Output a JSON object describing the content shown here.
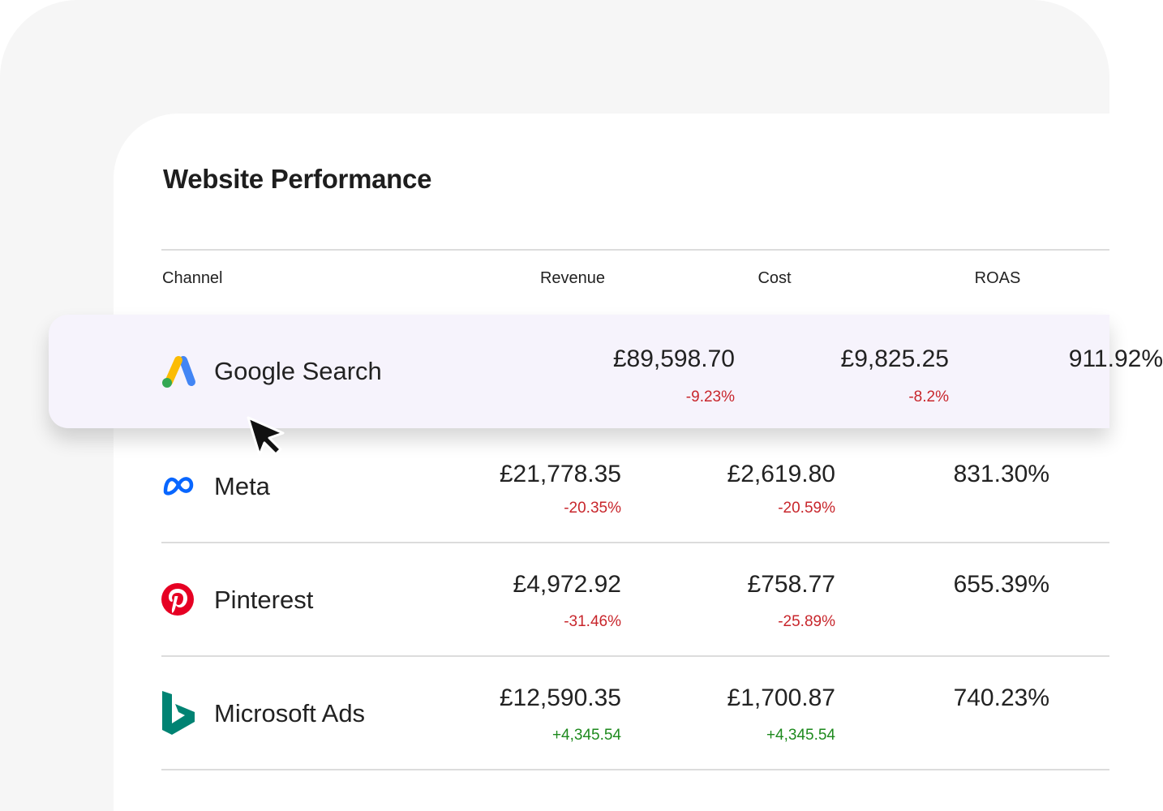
{
  "title": "Website Performance",
  "columns": {
    "channel": "Channel",
    "revenue": "Revenue",
    "cost": "Cost",
    "roas": "ROAS"
  },
  "rows": [
    {
      "channel": "Google Search",
      "icon": "google-ads-icon",
      "revenue": "£89,598.70",
      "revenue_change": "-9.23%",
      "cost": "£9,825.25",
      "cost_change": "-8.2%",
      "roas": "911.92%",
      "highlighted": true
    },
    {
      "channel": "Meta",
      "icon": "meta-icon",
      "revenue": "£21,778.35",
      "revenue_change": "-20.35%",
      "cost": "£2,619.80",
      "cost_change": "-20.59%",
      "roas": "831.30%"
    },
    {
      "channel": "Pinterest",
      "icon": "pinterest-icon",
      "revenue": "£4,972.92",
      "revenue_change": "-31.46%",
      "cost": "£758.77",
      "cost_change": "-25.89%",
      "roas": "655.39%"
    },
    {
      "channel": "Microsoft Ads",
      "icon": "bing-icon",
      "revenue": "£12,590.35",
      "revenue_change": "+4,345.54",
      "cost": "£1,700.87",
      "cost_change": "+4,345.54",
      "roas": "740.23%"
    }
  ],
  "colors": {
    "negative": "#c8262c",
    "positive": "#1e8a1e",
    "highlight_row": "#f6f3fc"
  }
}
